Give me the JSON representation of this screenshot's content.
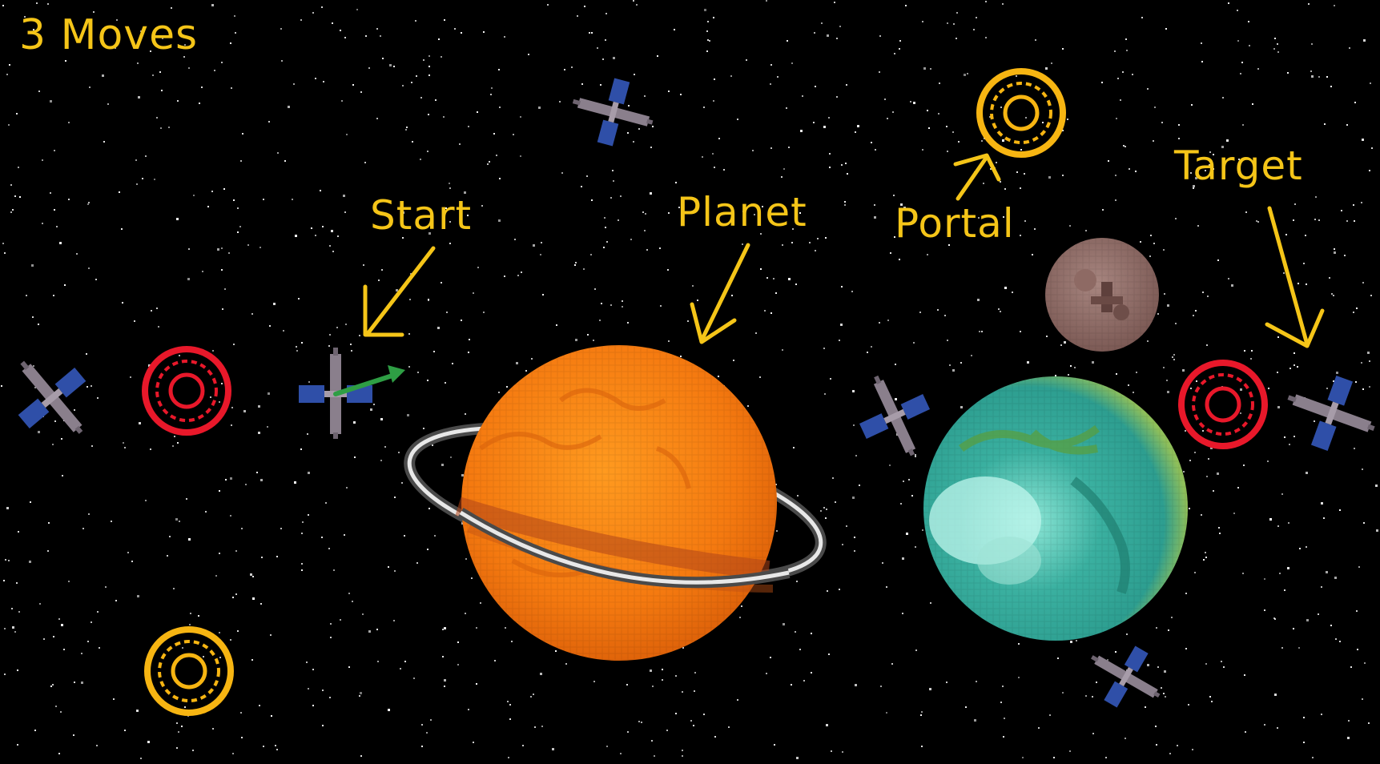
{
  "hud": {
    "moves_text": "3 Moves"
  },
  "annotations": {
    "start": "Start",
    "planet": "Planet",
    "portal": "Portal",
    "target": "Target"
  },
  "colors": {
    "annotation": "#f5c518",
    "red_portal": "#e8182a",
    "gold_portal": "#f7b512",
    "launch_arrow": "#2e9e44",
    "satellite_panel": "#2f4fa8",
    "satellite_body": "#8a7f8c"
  },
  "icons": [
    "satellite-icon",
    "red-portal-icon",
    "gold-portal-icon",
    "ringed-planet-icon",
    "earth-planet-icon",
    "moon-icon"
  ]
}
